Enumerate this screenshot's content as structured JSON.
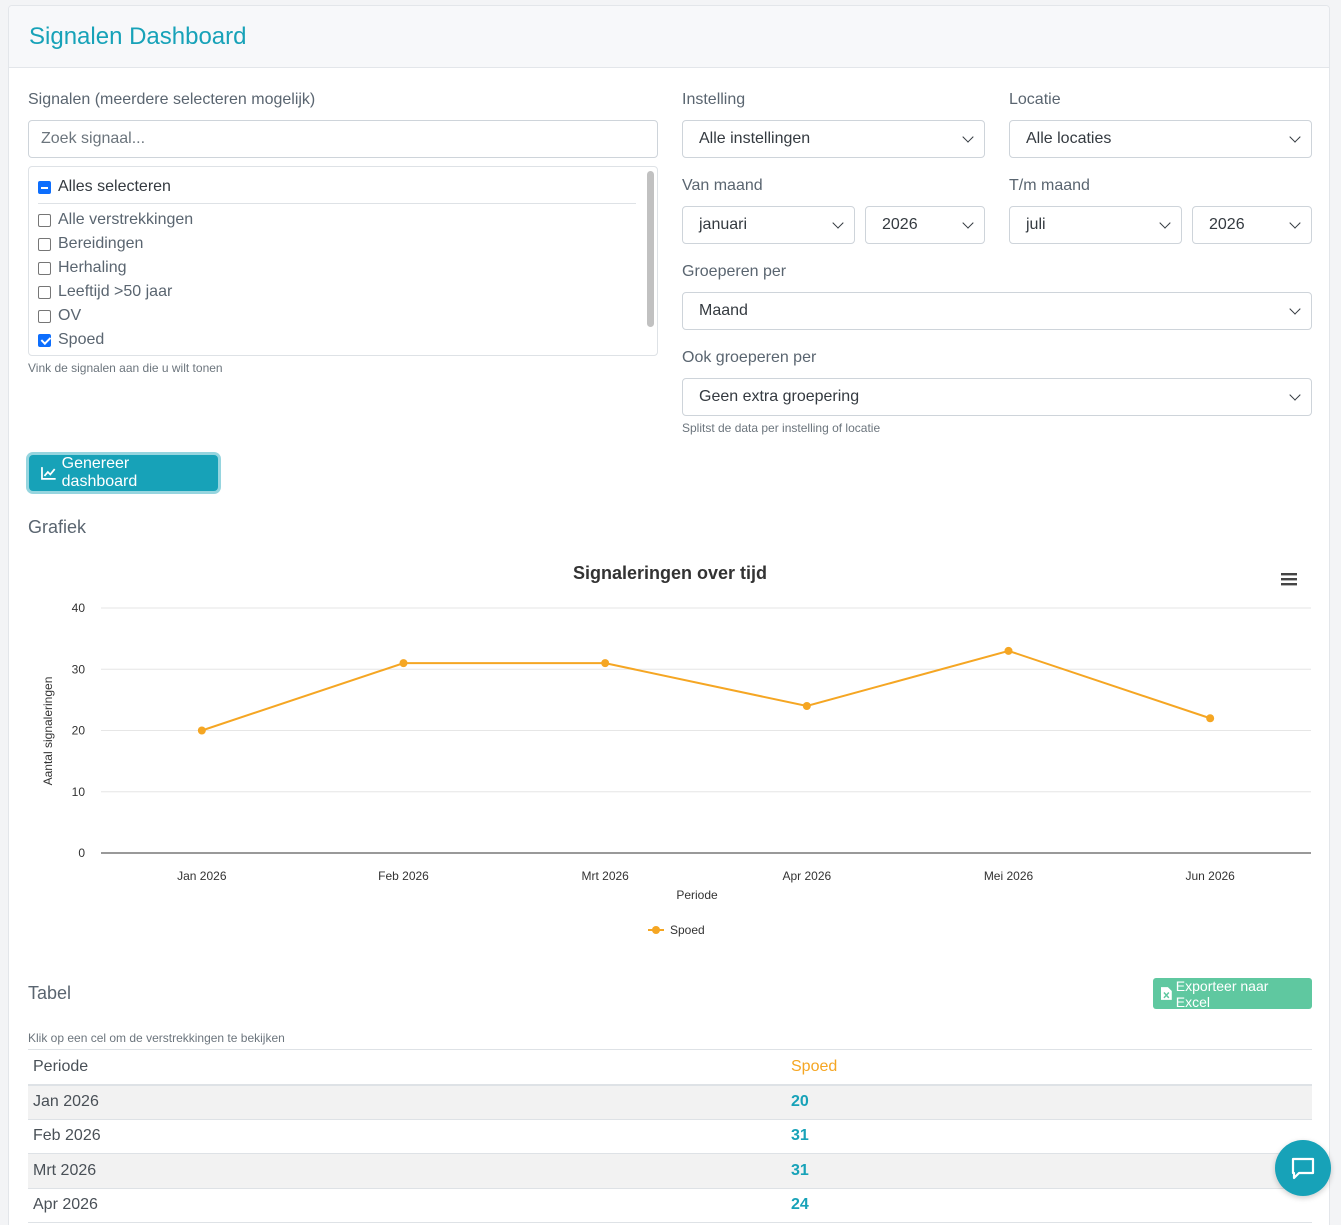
{
  "header": {
    "title": "Signalen Dashboard"
  },
  "signals": {
    "label": "Signalen (meerdere selecteren mogelijk)",
    "search_placeholder": "Zoek signaal...",
    "select_all_label": "Alles selecteren",
    "items": [
      {
        "label": "Alle verstrekkingen",
        "checked": false
      },
      {
        "label": "Bereidingen",
        "checked": false
      },
      {
        "label": "Herhaling",
        "checked": false
      },
      {
        "label": "Leeftijd >50 jaar",
        "checked": false
      },
      {
        "label": "OV",
        "checked": false
      },
      {
        "label": "Spoed",
        "checked": true
      }
    ],
    "help": "Vink de signalen aan die u wilt tonen"
  },
  "filters": {
    "instelling_label": "Instelling",
    "instelling_value": "Alle instellingen",
    "locatie_label": "Locatie",
    "locatie_value": "Alle locaties",
    "van_label": "Van maand",
    "van_month": "januari",
    "van_year": "2026",
    "tm_label": "T/m maand",
    "tm_month": "juli",
    "tm_year": "2026",
    "group_label": "Groeperen per",
    "group_value": "Maand",
    "extra_label": "Ook groeperen per",
    "extra_value": "Geen extra groepering",
    "extra_help": "Splitst de data per instelling of locatie"
  },
  "actions": {
    "generate_label": "Genereer dashboard"
  },
  "chart_section": {
    "title": "Grafiek"
  },
  "chart_data": {
    "type": "line",
    "title": "Signaleringen over tijd",
    "xlabel": "Periode",
    "ylabel": "Aantal signaleringen",
    "categories": [
      "Jan 2026",
      "Feb 2026",
      "Mrt 2026",
      "Apr 2026",
      "Mei 2026",
      "Jun 2026"
    ],
    "series": [
      {
        "name": "Spoed",
        "values": [
          20,
          31,
          31,
          24,
          33,
          22
        ],
        "color": "#f5a623"
      }
    ],
    "ylim": [
      0,
      40
    ],
    "yticks": [
      "0",
      "10",
      "20",
      "30",
      "40"
    ],
    "grid": true,
    "legend": "bottom-center"
  },
  "table_section": {
    "title": "Tabel",
    "export_label": "Exporteer naar Excel",
    "help": "Klik op een cel om de verstrekkingen te bekijken",
    "columns": [
      "Periode",
      "Spoed"
    ],
    "rows": [
      [
        "Jan 2026",
        "20"
      ],
      [
        "Feb 2026",
        "31"
      ],
      [
        "Mrt 2026",
        "31"
      ],
      [
        "Apr 2026",
        "24"
      ]
    ]
  },
  "colors": {
    "accent": "#17a2b8",
    "series": "#f5a623",
    "excel": "#5fc8a0"
  }
}
